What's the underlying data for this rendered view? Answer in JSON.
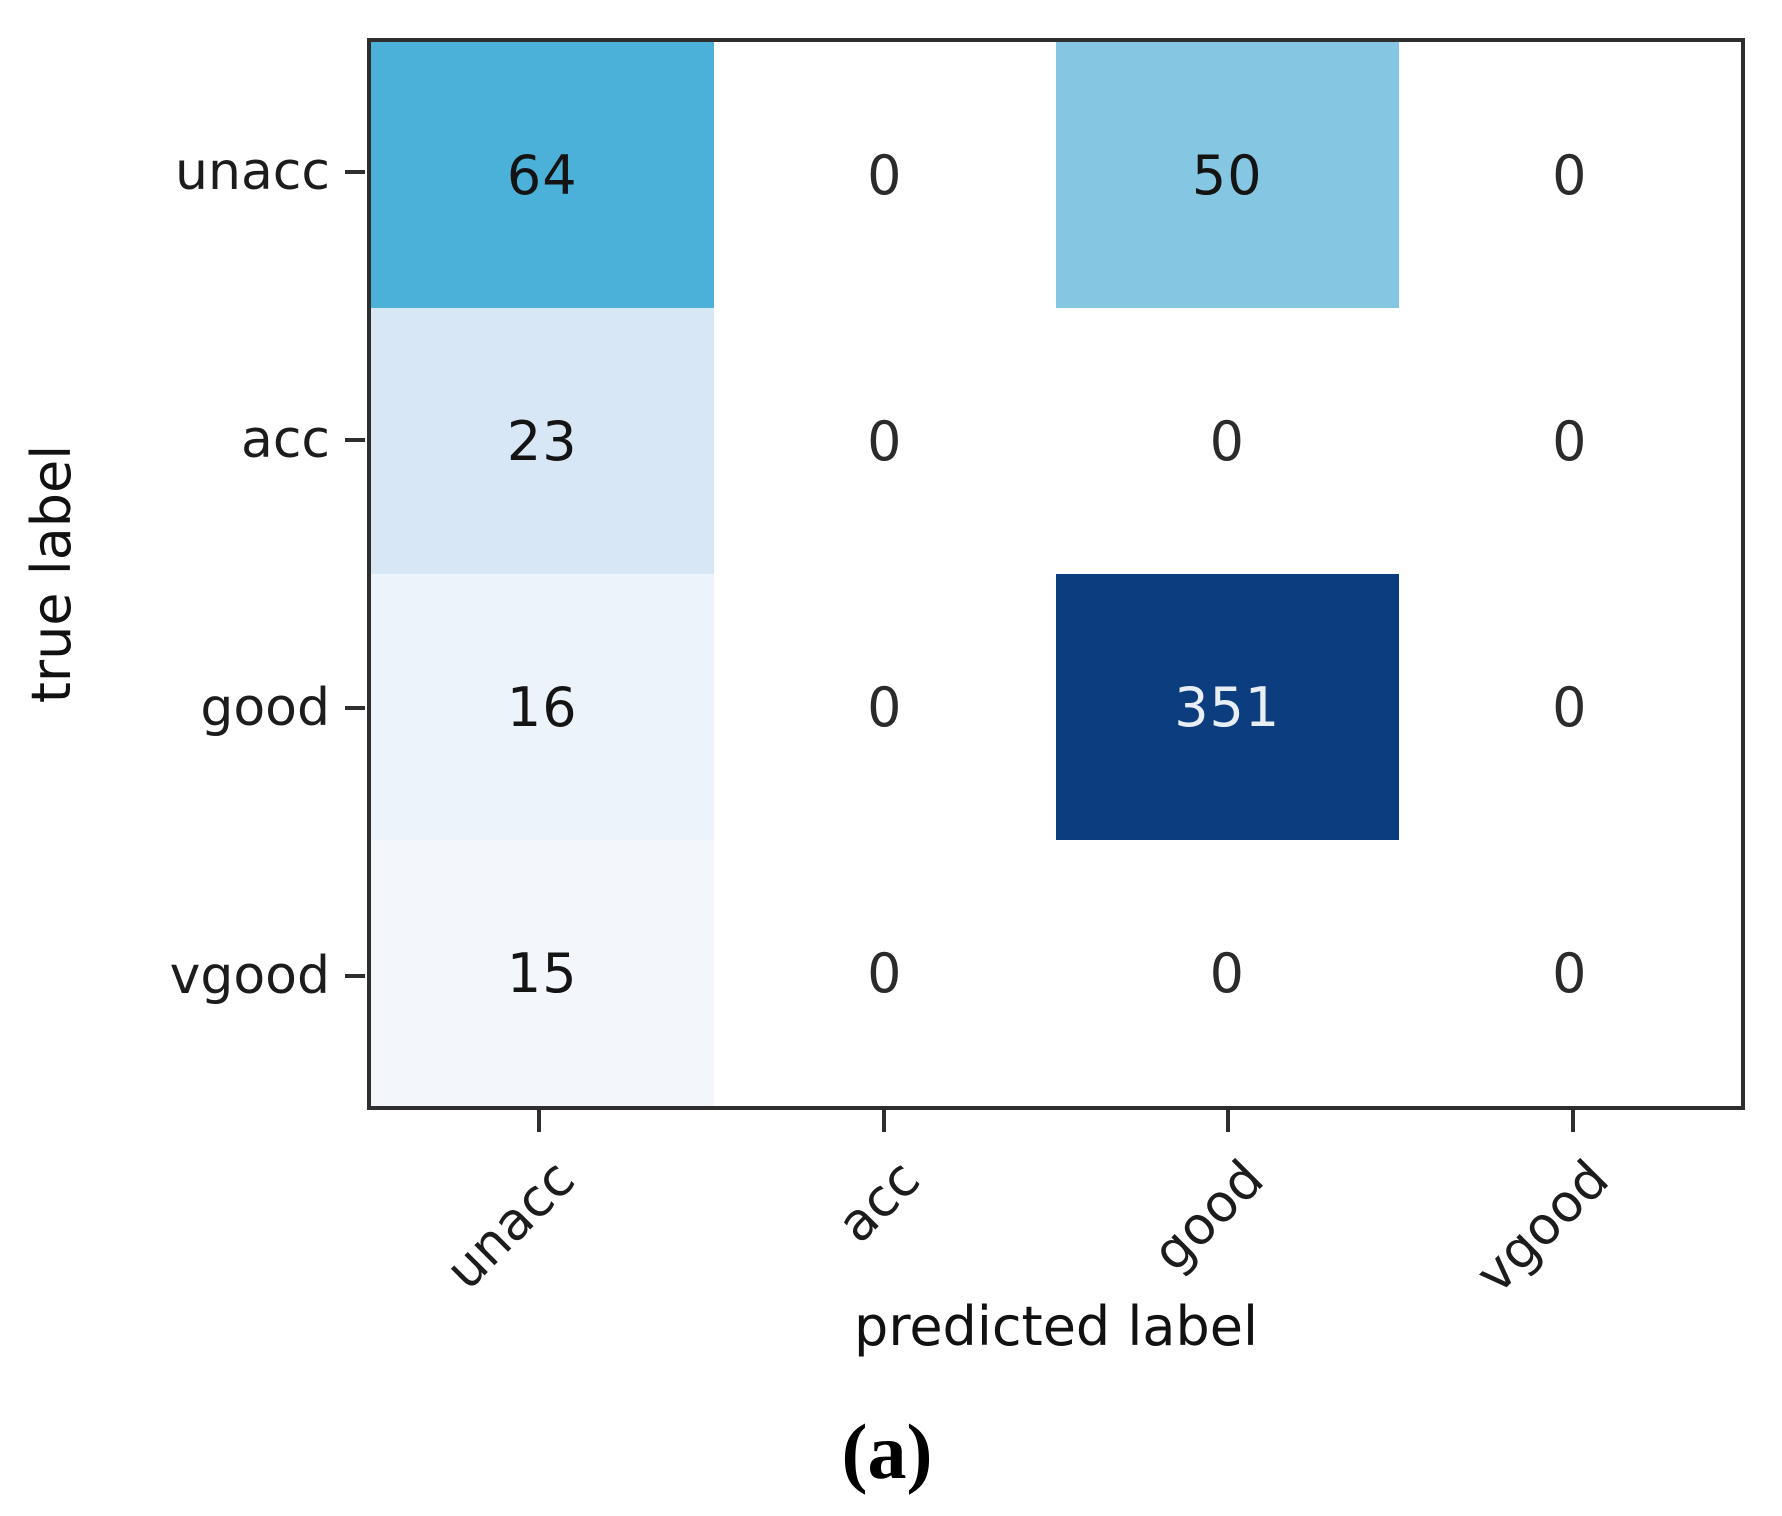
{
  "figure": {
    "caption": "(a)"
  },
  "chart_data": {
    "type": "heatmap",
    "title": "",
    "xlabel": "predicted label",
    "ylabel": "true label",
    "x_categories": [
      "unacc",
      "acc",
      "good",
      "vgood"
    ],
    "y_categories": [
      "unacc",
      "acc",
      "good",
      "vgood"
    ],
    "matrix": [
      [
        64,
        0,
        50,
        0
      ],
      [
        23,
        0,
        0,
        0
      ],
      [
        16,
        0,
        351,
        0
      ],
      [
        15,
        0,
        0,
        0
      ]
    ],
    "cell_colors": [
      [
        "#4cb1d9",
        "#ffffff",
        "#85c7e2",
        "#ffffff"
      ],
      [
        "#d8e7f5",
        "#ffffff",
        "#ffffff",
        "#ffffff"
      ],
      [
        "#edf3fa",
        "#ffffff",
        "#0c3d7e",
        "#ffffff"
      ],
      [
        "#f3f7fc",
        "#ffffff",
        "#ffffff",
        "#ffffff"
      ]
    ],
    "text_colors": [
      [
        "#141414",
        "#2b2b2b",
        "#141414",
        "#2b2b2b"
      ],
      [
        "#141414",
        "#2b2b2b",
        "#2b2b2b",
        "#2b2b2b"
      ],
      [
        "#141414",
        "#2b2b2b",
        "#e8eef6",
        "#2b2b2b"
      ],
      [
        "#141414",
        "#2b2b2b",
        "#2b2b2b",
        "#2b2b2b"
      ]
    ],
    "colormap": "Blues",
    "grid": false,
    "x_tick_rotation": 45,
    "legend": "none",
    "colorbar": false
  }
}
